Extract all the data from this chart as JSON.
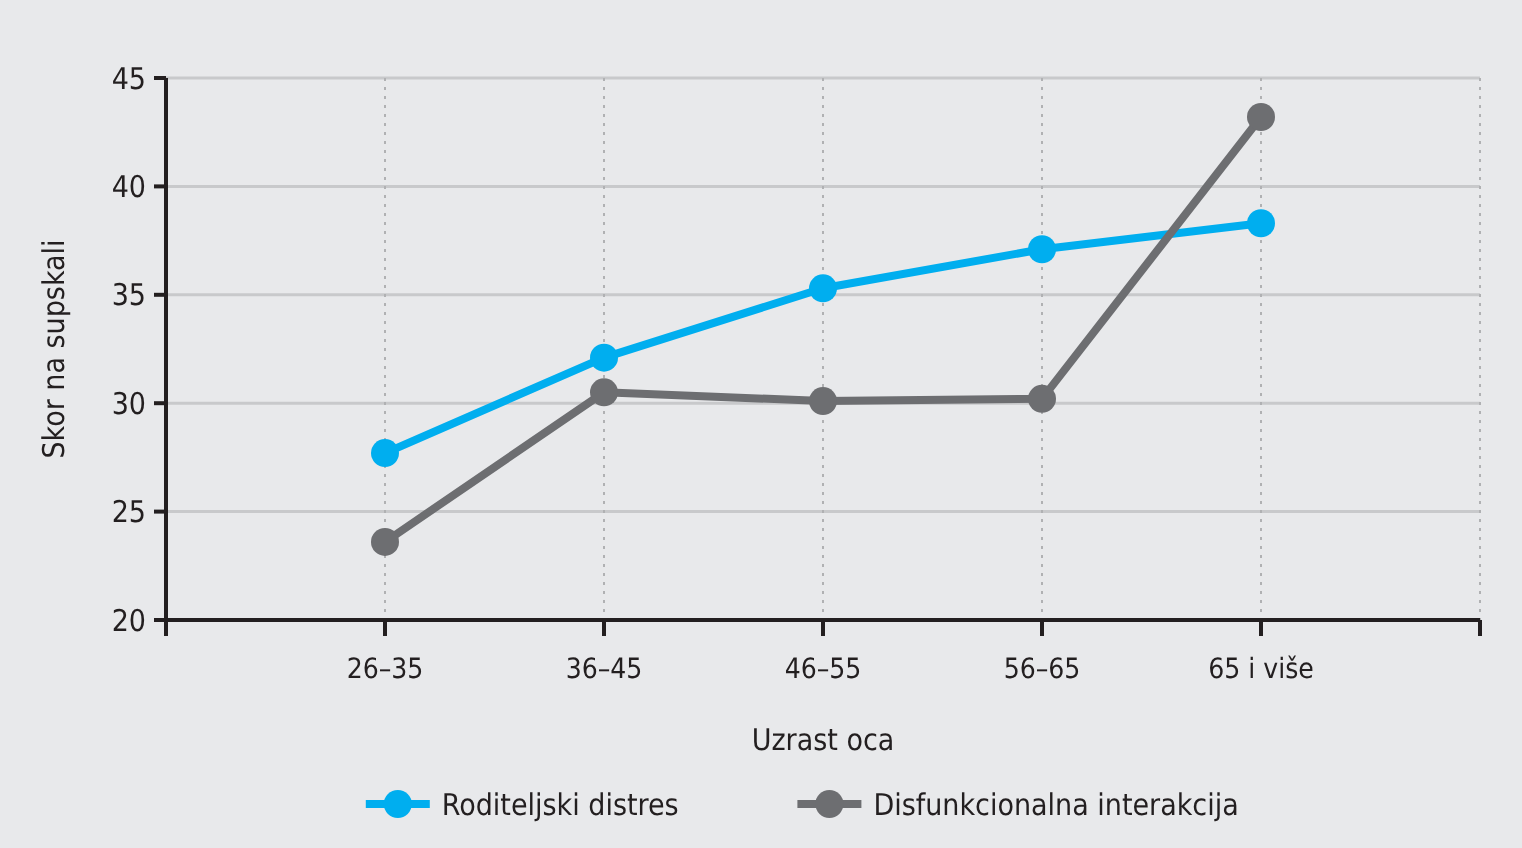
{
  "chart_data": {
    "type": "line",
    "xlabel": "Uzrast oca",
    "ylabel": "Skor na supskali",
    "categories": [
      null,
      "26–35",
      "36–45",
      "46–55",
      "56–65",
      "65 i više",
      null
    ],
    "series": [
      {
        "name": "Roditeljski distres",
        "color": "#00aeef",
        "values": [
          null,
          27.7,
          32.1,
          35.3,
          37.1,
          38.3,
          null
        ]
      },
      {
        "name": "Disfunkcionalna interakcija",
        "color": "#6d6e71",
        "values": [
          null,
          23.6,
          30.5,
          30.1,
          30.2,
          43.2,
          null
        ]
      }
    ],
    "ylim": [
      20,
      45
    ],
    "yticks": [
      20,
      25,
      30,
      35,
      40,
      45
    ],
    "grid": true,
    "legend": "bottom",
    "marker": "circle",
    "line_style": "solid"
  }
}
